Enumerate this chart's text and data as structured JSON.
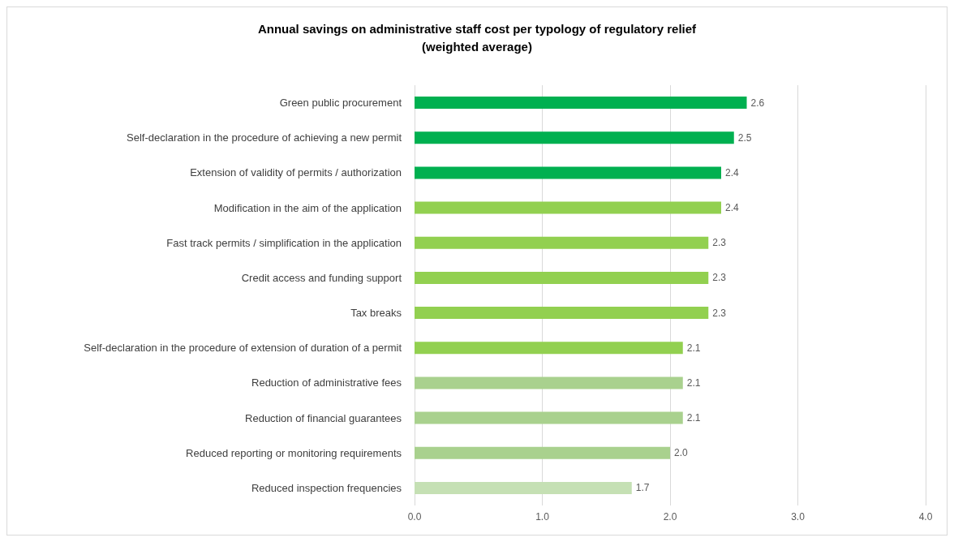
{
  "chart_data": {
    "type": "bar",
    "orientation": "horizontal",
    "title": "Annual savings on administrative staff cost per typology of regulatory relief\n(weighted average)",
    "categories": [
      "Green public procurement",
      "Self-declaration in the procedure of achieving a new permit",
      "Extension of validity of permits / authorization",
      "Modification in the aim of the application",
      "Fast track permits / simplification in the application",
      "Credit access and funding support",
      "Tax breaks",
      "Self-declaration in the procedure of extension of duration of a permit",
      "Reduction of administrative fees",
      "Reduction of financial guarantees",
      "Reduced reporting or monitoring requirements",
      "Reduced inspection frequencies"
    ],
    "values": [
      2.6,
      2.5,
      2.4,
      2.4,
      2.3,
      2.3,
      2.3,
      2.1,
      2.1,
      2.1,
      2.0,
      1.7
    ],
    "colors": [
      "#00b050",
      "#00b050",
      "#00b050",
      "#92d050",
      "#92d050",
      "#92d050",
      "#92d050",
      "#92d050",
      "#a9d18e",
      "#a9d18e",
      "#a9d18e",
      "#c5e0b4"
    ],
    "xlim": [
      0,
      4
    ],
    "xticks": [
      {
        "value": 0,
        "label": "0.0"
      },
      {
        "value": 1,
        "label": "1.0"
      },
      {
        "value": 2,
        "label": "2.0"
      },
      {
        "value": 3,
        "label": "3.0"
      },
      {
        "value": 4,
        "label": "4.0"
      }
    ],
    "value_labels": [
      "2.6",
      "2.5",
      "2.4",
      "2.4",
      "2.3",
      "2.3",
      "2.3",
      "2.1",
      "2.1",
      "2.1",
      "2.0",
      "1.7"
    ],
    "grid": "x"
  }
}
